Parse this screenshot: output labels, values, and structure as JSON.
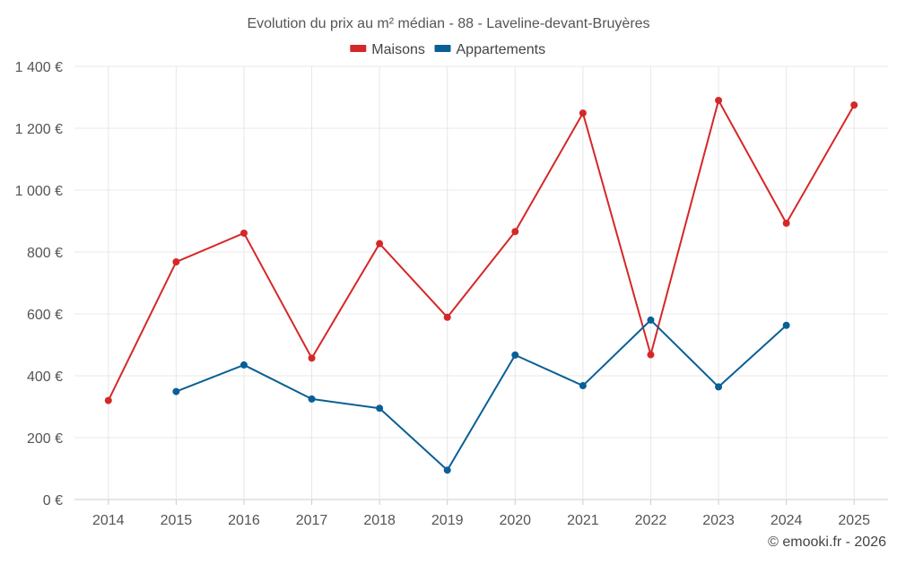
{
  "chart_data": {
    "type": "line",
    "title": "Evolution du prix au m² médian - 88 - Laveline-devant-Bruyères",
    "categories": [
      "2014",
      "2015",
      "2016",
      "2017",
      "2018",
      "2019",
      "2020",
      "2021",
      "2022",
      "2023",
      "2024",
      "2025"
    ],
    "series": [
      {
        "name": "Maisons",
        "color": "#d62728",
        "values": [
          320,
          768,
          861,
          457,
          827,
          589,
          866,
          1249,
          468,
          1290,
          893,
          1275
        ]
      },
      {
        "name": "Appartements",
        "color": "#0a5f96",
        "values": [
          null,
          349,
          435,
          325,
          295,
          95,
          467,
          368,
          580,
          364,
          563,
          null
        ]
      }
    ],
    "ylim": [
      0,
      1400
    ],
    "yticks": [
      0,
      200,
      400,
      600,
      800,
      1000,
      1200,
      1400
    ],
    "ytick_labels": [
      "0 €",
      "200 €",
      "400 €",
      "600 €",
      "800 €",
      "1 000 €",
      "1 200 €",
      "1 400 €"
    ],
    "grid": true,
    "legend_position": "top-center",
    "xlabel": "",
    "ylabel": "",
    "credit": "© emooki.fr - 2026"
  }
}
